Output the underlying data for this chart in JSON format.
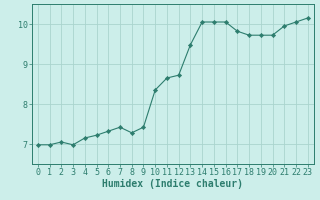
{
  "x": [
    0,
    1,
    2,
    3,
    4,
    5,
    6,
    7,
    8,
    9,
    10,
    11,
    12,
    13,
    14,
    15,
    16,
    17,
    18,
    19,
    20,
    21,
    22,
    23
  ],
  "y": [
    6.98,
    6.98,
    7.05,
    6.98,
    7.15,
    7.22,
    7.32,
    7.42,
    7.28,
    7.42,
    8.35,
    8.65,
    8.72,
    9.48,
    10.05,
    10.05,
    10.05,
    9.82,
    9.72,
    9.72,
    9.72,
    9.95,
    10.05,
    10.15
  ],
  "line_color": "#2d7d6e",
  "marker": "D",
  "marker_size": 2.2,
  "bg_color": "#cceeea",
  "grid_color": "#aad4ce",
  "xlabel": "Humidex (Indice chaleur)",
  "xlim": [
    -0.5,
    23.5
  ],
  "ylim": [
    6.5,
    10.5
  ],
  "yticks": [
    7,
    8,
    9,
    10
  ],
  "xticks": [
    0,
    1,
    2,
    3,
    4,
    5,
    6,
    7,
    8,
    9,
    10,
    11,
    12,
    13,
    14,
    15,
    16,
    17,
    18,
    19,
    20,
    21,
    22,
    23
  ],
  "tick_color": "#2d7d6e",
  "label_color": "#2d7d6e",
  "xlabel_fontsize": 7,
  "tick_fontsize": 6
}
